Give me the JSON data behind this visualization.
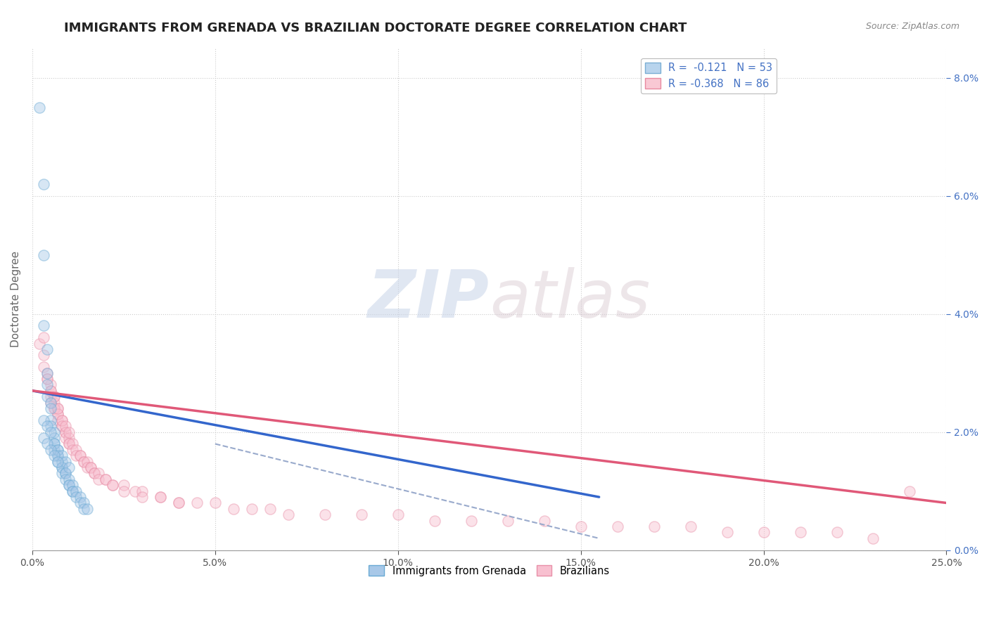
{
  "title": "IMMIGRANTS FROM GRENADA VS BRAZILIAN DOCTORATE DEGREE CORRELATION CHART",
  "source_text": "Source: ZipAtlas.com",
  "ylabel": "Doctorate Degree",
  "xlim": [
    0.0,
    0.25
  ],
  "ylim": [
    0.0,
    0.085
  ],
  "xtick_labels": [
    "0.0%",
    "5.0%",
    "10.0%",
    "15.0%",
    "20.0%",
    "25.0%"
  ],
  "xtick_vals": [
    0.0,
    0.05,
    0.1,
    0.15,
    0.2,
    0.25
  ],
  "ytick_labels_right": [
    "0.0%",
    "2.0%",
    "4.0%",
    "6.0%",
    "8.0%"
  ],
  "ytick_vals": [
    0.0,
    0.02,
    0.04,
    0.06,
    0.08
  ],
  "legend_entries": [
    {
      "label": "R =  -0.121   N = 53",
      "facecolor": "#b8d4ed",
      "edgecolor": "#7bafd4"
    },
    {
      "label": "R = -0.368   N = 86",
      "facecolor": "#f9c8d4",
      "edgecolor": "#e88aa0"
    }
  ],
  "legend_labels_bottom": [
    "Immigrants from Grenada",
    "Brazilians"
  ],
  "watermark_zip": "ZIP",
  "watermark_atlas": "atlas",
  "title_fontsize": 13,
  "axis_label_fontsize": 11,
  "tick_fontsize": 10,
  "blue_scatter_color": "#a8c8e8",
  "blue_scatter_edge": "#6aaad4",
  "pink_scatter_color": "#f8c0d0",
  "pink_scatter_edge": "#e890a8",
  "blue_line_color": "#3366cc",
  "pink_line_color": "#e05878",
  "dashed_line_color": "#99aacc",
  "grid_color": "#cccccc",
  "background_color": "#ffffff",
  "title_color": "#222222",
  "right_axis_color": "#4472c4",
  "scatter_size": 120,
  "scatter_alpha": 0.45,
  "scatter_lw": 1.0,
  "blue_scatter_x": [
    0.002,
    0.003,
    0.003,
    0.003,
    0.004,
    0.004,
    0.004,
    0.004,
    0.005,
    0.005,
    0.005,
    0.005,
    0.006,
    0.006,
    0.006,
    0.006,
    0.007,
    0.007,
    0.007,
    0.007,
    0.008,
    0.008,
    0.008,
    0.008,
    0.009,
    0.009,
    0.009,
    0.01,
    0.01,
    0.01,
    0.011,
    0.011,
    0.011,
    0.012,
    0.012,
    0.013,
    0.013,
    0.014,
    0.014,
    0.015,
    0.003,
    0.004,
    0.005,
    0.006,
    0.007,
    0.008,
    0.009,
    0.01,
    0.003,
    0.004,
    0.005,
    0.006,
    0.007
  ],
  "blue_scatter_y": [
    0.075,
    0.062,
    0.05,
    0.038,
    0.034,
    0.03,
    0.028,
    0.026,
    0.025,
    0.024,
    0.022,
    0.021,
    0.02,
    0.019,
    0.018,
    0.017,
    0.017,
    0.016,
    0.016,
    0.015,
    0.015,
    0.014,
    0.014,
    0.013,
    0.013,
    0.013,
    0.012,
    0.012,
    0.011,
    0.011,
    0.011,
    0.01,
    0.01,
    0.01,
    0.009,
    0.009,
    0.008,
    0.008,
    0.007,
    0.007,
    0.022,
    0.021,
    0.02,
    0.018,
    0.017,
    0.016,
    0.015,
    0.014,
    0.019,
    0.018,
    0.017,
    0.016,
    0.015
  ],
  "pink_scatter_x": [
    0.002,
    0.003,
    0.003,
    0.004,
    0.004,
    0.005,
    0.005,
    0.005,
    0.006,
    0.006,
    0.006,
    0.007,
    0.007,
    0.007,
    0.008,
    0.008,
    0.008,
    0.009,
    0.009,
    0.009,
    0.01,
    0.01,
    0.01,
    0.011,
    0.011,
    0.012,
    0.012,
    0.013,
    0.013,
    0.014,
    0.014,
    0.015,
    0.015,
    0.016,
    0.016,
    0.017,
    0.017,
    0.018,
    0.018,
    0.02,
    0.02,
    0.022,
    0.022,
    0.025,
    0.025,
    0.028,
    0.03,
    0.03,
    0.035,
    0.035,
    0.04,
    0.04,
    0.045,
    0.05,
    0.055,
    0.06,
    0.065,
    0.07,
    0.08,
    0.09,
    0.1,
    0.11,
    0.12,
    0.13,
    0.14,
    0.15,
    0.16,
    0.17,
    0.18,
    0.19,
    0.2,
    0.21,
    0.22,
    0.23,
    0.005,
    0.006,
    0.007,
    0.008,
    0.009,
    0.01,
    0.004,
    0.005,
    0.006,
    0.007,
    0.24,
    0.003
  ],
  "pink_scatter_y": [
    0.035,
    0.033,
    0.031,
    0.03,
    0.029,
    0.028,
    0.027,
    0.026,
    0.026,
    0.025,
    0.024,
    0.024,
    0.023,
    0.022,
    0.022,
    0.021,
    0.021,
    0.02,
    0.02,
    0.019,
    0.019,
    0.018,
    0.018,
    0.018,
    0.017,
    0.017,
    0.016,
    0.016,
    0.016,
    0.015,
    0.015,
    0.015,
    0.014,
    0.014,
    0.014,
    0.013,
    0.013,
    0.013,
    0.012,
    0.012,
    0.012,
    0.011,
    0.011,
    0.011,
    0.01,
    0.01,
    0.01,
    0.009,
    0.009,
    0.009,
    0.008,
    0.008,
    0.008,
    0.008,
    0.007,
    0.007,
    0.007,
    0.006,
    0.006,
    0.006,
    0.006,
    0.005,
    0.005,
    0.005,
    0.005,
    0.004,
    0.004,
    0.004,
    0.004,
    0.003,
    0.003,
    0.003,
    0.003,
    0.002,
    0.025,
    0.024,
    0.023,
    0.022,
    0.021,
    0.02,
    0.029,
    0.027,
    0.026,
    0.024,
    0.01,
    0.036
  ],
  "blue_line_x": [
    0.0,
    0.155
  ],
  "blue_line_y": [
    0.027,
    0.009
  ],
  "pink_line_x": [
    0.0,
    0.25
  ],
  "pink_line_y": [
    0.027,
    0.008
  ],
  "dashed_line_x": [
    0.05,
    0.155
  ],
  "dashed_line_y": [
    0.018,
    0.002
  ],
  "right_tick_color": "#4472c4"
}
